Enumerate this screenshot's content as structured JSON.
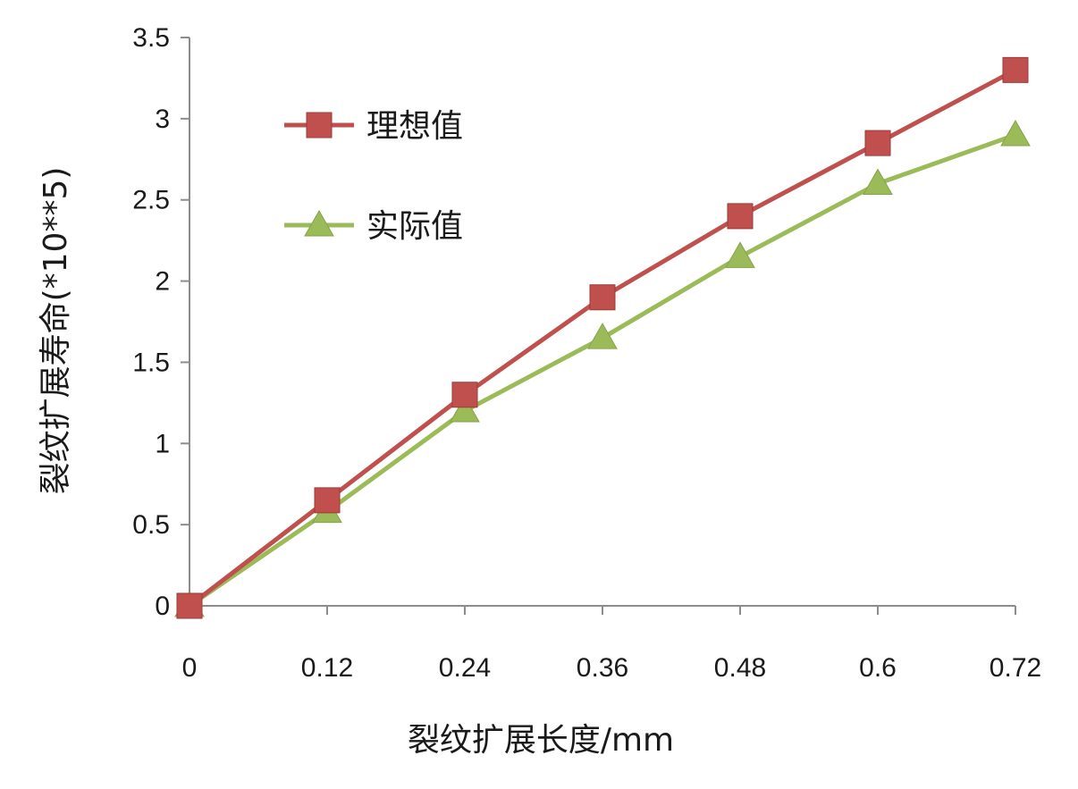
{
  "chart_data": {
    "type": "line",
    "x": [
      0,
      0.12,
      0.24,
      0.36,
      0.48,
      0.6,
      0.72
    ],
    "xtick_labels": [
      "0",
      "0.12",
      "0.24",
      "0.36",
      "0.48",
      "0.6",
      "0.72"
    ],
    "yticks": [
      0,
      0.5,
      1,
      1.5,
      2,
      2.5,
      3,
      3.5
    ],
    "ytick_labels": [
      "0",
      "0.5",
      "1",
      "1.5",
      "2",
      "2.5",
      "3",
      "3.5"
    ],
    "ylim": [
      0,
      3.5
    ],
    "xlabel": "裂纹扩展长度/mm",
    "ylabel": "裂纹扩展寿命(*10**5)",
    "grid": false,
    "legend": "top-left",
    "series": [
      {
        "name": "理想值",
        "values": [
          0,
          0.65,
          1.3,
          1.9,
          2.4,
          2.85,
          3.3
        ],
        "color": "#c0504d",
        "marker": "square"
      },
      {
        "name": "实际值",
        "values": [
          0,
          0.58,
          1.2,
          1.65,
          2.15,
          2.6,
          2.9
        ],
        "color": "#9bbb59",
        "marker": "triangle"
      }
    ]
  }
}
